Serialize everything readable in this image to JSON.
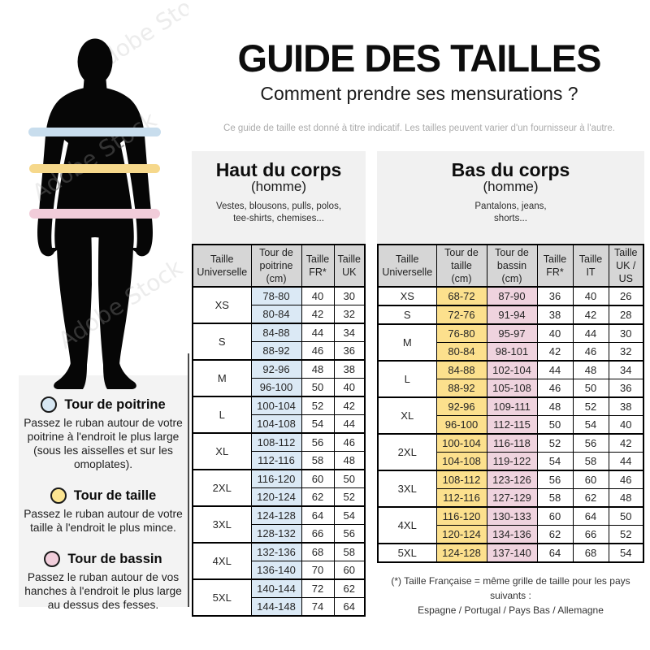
{
  "page": {
    "title": "GUIDE DES TAILLES",
    "subtitle": "Comment prendre ses mensurations ?",
    "disclaimer": "Ce guide de taille est donné à titre indicatif. Les tailles peuvent varier d'un fournisseur à l'autre.",
    "watermark": "Adobe Stock"
  },
  "figure": {
    "bands": [
      {
        "name": "tour-de-poitrine",
        "color": "#c8dded"
      },
      {
        "name": "tour-de-taille",
        "color": "#f6d88b"
      },
      {
        "name": "tour-de-bassin",
        "color": "#f1ccd9"
      }
    ]
  },
  "legend": {
    "items": [
      {
        "title": "Tour de poitrine",
        "color": "#d7e7f3",
        "text": "Passez le ruban autour de votre\npoitrine à l'endroit le plus large\n(sous les aisselles et sur les\nomoplates)."
      },
      {
        "title": "Tour de taille",
        "color": "#fbe491",
        "text": "Passez le ruban autour de votre\ntaille à l'endroit le plus mince."
      },
      {
        "title": "Tour de bassin",
        "color": "#f1cedb",
        "text": "Passez le ruban autour de vos\nhanches à l'endroit le plus large\nau dessus des fesses."
      }
    ]
  },
  "upper_table": {
    "title": "Haut du corps",
    "subtitle": "(homme)",
    "description": "Vestes, blousons, pulls, polos,\ntee-shirts, chemises...",
    "headers": [
      "Taille\nUniverselle",
      "Tour de\npoitrine\n(cm)",
      "Taille\nFR*",
      "Taille\nUK"
    ],
    "value_col_colors": [
      "#dbe9f5",
      "",
      ""
    ],
    "groups": [
      {
        "size": "XS",
        "rows": [
          [
            "78-80",
            "40",
            "30"
          ],
          [
            "80-84",
            "42",
            "32"
          ]
        ]
      },
      {
        "size": "S",
        "rows": [
          [
            "84-88",
            "44",
            "34"
          ],
          [
            "88-92",
            "46",
            "36"
          ]
        ]
      },
      {
        "size": "M",
        "rows": [
          [
            "92-96",
            "48",
            "38"
          ],
          [
            "96-100",
            "50",
            "40"
          ]
        ]
      },
      {
        "size": "L",
        "rows": [
          [
            "100-104",
            "52",
            "42"
          ],
          [
            "104-108",
            "54",
            "44"
          ]
        ]
      },
      {
        "size": "XL",
        "rows": [
          [
            "108-112",
            "56",
            "46"
          ],
          [
            "112-116",
            "58",
            "48"
          ]
        ]
      },
      {
        "size": "2XL",
        "rows": [
          [
            "116-120",
            "60",
            "50"
          ],
          [
            "120-124",
            "62",
            "52"
          ]
        ]
      },
      {
        "size": "3XL",
        "rows": [
          [
            "124-128",
            "64",
            "54"
          ],
          [
            "128-132",
            "66",
            "56"
          ]
        ]
      },
      {
        "size": "4XL",
        "rows": [
          [
            "132-136",
            "68",
            "58"
          ],
          [
            "136-140",
            "70",
            "60"
          ]
        ]
      },
      {
        "size": "5XL",
        "rows": [
          [
            "140-144",
            "72",
            "62"
          ],
          [
            "144-148",
            "74",
            "64"
          ]
        ]
      }
    ]
  },
  "lower_table": {
    "title": "Bas du corps",
    "subtitle": "(homme)",
    "description": "Pantalons, jeans,\nshorts...",
    "headers": [
      "Taille\nUniverselle",
      "Tour de\ntaille\n(cm)",
      "Tour de\nbassin\n(cm)",
      "Taille\nFR*",
      "Taille\nIT",
      "Taille\nUK /\nUS"
    ],
    "value_col_colors": [
      "#fce08d",
      "#efd3de",
      "",
      "",
      ""
    ],
    "groups": [
      {
        "size": "XS",
        "rows": [
          [
            "68-72",
            "87-90",
            "36",
            "40",
            "26"
          ]
        ]
      },
      {
        "size": "S",
        "rows": [
          [
            "72-76",
            "91-94",
            "38",
            "42",
            "28"
          ]
        ]
      },
      {
        "size": "M",
        "rows": [
          [
            "76-80",
            "95-97",
            "40",
            "44",
            "30"
          ],
          [
            "80-84",
            "98-101",
            "42",
            "46",
            "32"
          ]
        ]
      },
      {
        "size": "L",
        "rows": [
          [
            "84-88",
            "102-104",
            "44",
            "48",
            "34"
          ],
          [
            "88-92",
            "105-108",
            "46",
            "50",
            "36"
          ]
        ]
      },
      {
        "size": "XL",
        "rows": [
          [
            "92-96",
            "109-111",
            "48",
            "52",
            "38"
          ],
          [
            "96-100",
            "112-115",
            "50",
            "54",
            "40"
          ]
        ]
      },
      {
        "size": "2XL",
        "rows": [
          [
            "100-104",
            "116-118",
            "52",
            "56",
            "42"
          ],
          [
            "104-108",
            "119-122",
            "54",
            "58",
            "44"
          ]
        ]
      },
      {
        "size": "3XL",
        "rows": [
          [
            "108-112",
            "123-126",
            "56",
            "60",
            "46"
          ],
          [
            "112-116",
            "127-129",
            "58",
            "62",
            "48"
          ]
        ]
      },
      {
        "size": "4XL",
        "rows": [
          [
            "116-120",
            "130-133",
            "60",
            "64",
            "50"
          ],
          [
            "120-124",
            "134-136",
            "62",
            "66",
            "52"
          ]
        ]
      },
      {
        "size": "5XL",
        "rows": [
          [
            "124-128",
            "137-140",
            "64",
            "68",
            "54"
          ]
        ]
      }
    ]
  },
  "footnote": {
    "line1": "(*) Taille Française = même grille de taille pour les pays suivants :",
    "line2": "Espagne / Portugal / Pays Bas / Allemagne"
  }
}
